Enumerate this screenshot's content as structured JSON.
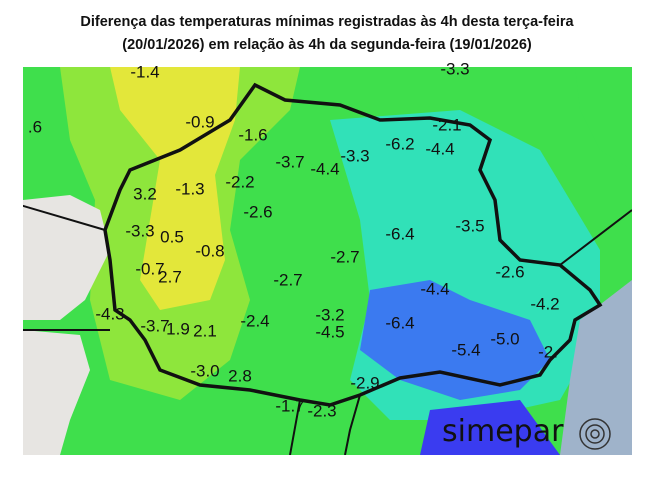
{
  "header": {
    "title_line1": "Diferença das temperaturas mínimas registradas às 4h desta terça-feira",
    "title_line2": "(20/01/2026) em relação às 4h da segunda-feira (19/01/2026)"
  },
  "map": {
    "labels": [
      "-1.4",
      ".6",
      "-0.9",
      "-1.6",
      "-3.7",
      "-4.4",
      "-3.3",
      "-6.2",
      "-2.1",
      "-4.4",
      "-3.3",
      "3.2",
      "-1.3",
      "-2.2",
      "-2.6",
      "-3.3",
      "0.5",
      "-0.8",
      "-6.4",
      "-3.5",
      "-0.7",
      "2.7",
      "-2.7",
      "-2.7",
      "-2.6",
      "-4.4",
      "-4.3",
      "-3.7",
      "1.9",
      "2.1",
      "-2.4",
      "-3.2",
      "-4.5",
      "-6.4",
      "-5.4",
      "-5.0",
      "-4.2",
      "-2.",
      "-3.0",
      "2.8",
      "-2.9",
      "-1.7",
      "-2.3"
    ]
  },
  "logo": {
    "text": "simepar"
  }
}
